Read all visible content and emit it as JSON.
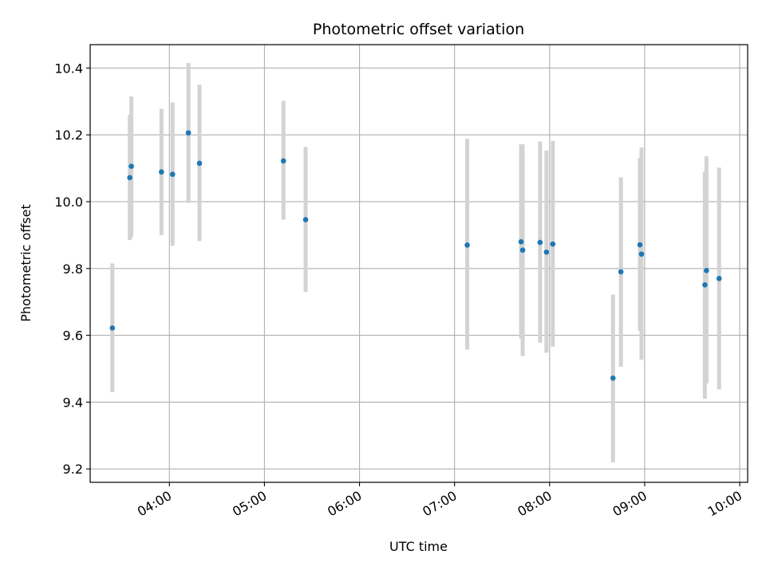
{
  "chart_data": {
    "type": "scatter",
    "title": "Photometric offset variation",
    "xlabel": "UTC time",
    "ylabel": "Photometric offset",
    "grid": true,
    "x_ticks": [
      "04:00",
      "05:00",
      "06:00",
      "07:00",
      "08:00",
      "09:00",
      "10:00"
    ],
    "y_ticks": [
      9.2,
      9.4,
      9.6,
      9.8,
      10.0,
      10.2,
      10.4
    ],
    "xlim": [
      "03:10",
      "10:05"
    ],
    "ylim": [
      9.16,
      10.47
    ],
    "colors": {
      "point": "#1f77b4",
      "errorbar": "#d3d3d3",
      "grid": "#b0b0b0"
    },
    "points": [
      {
        "t": "03:24",
        "y": 9.622,
        "lo": 9.43,
        "hi": 9.815
      },
      {
        "t": "03:35",
        "y": 10.072,
        "lo": 9.885,
        "hi": 10.26
      },
      {
        "t": "03:36",
        "y": 10.106,
        "lo": 9.895,
        "hi": 10.315
      },
      {
        "t": "03:55",
        "y": 10.089,
        "lo": 9.9,
        "hi": 10.278
      },
      {
        "t": "04:02",
        "y": 10.082,
        "lo": 9.868,
        "hi": 10.297
      },
      {
        "t": "04:12",
        "y": 10.206,
        "lo": 9.996,
        "hi": 10.415
      },
      {
        "t": "04:19",
        "y": 10.115,
        "lo": 9.882,
        "hi": 10.35
      },
      {
        "t": "05:12",
        "y": 10.122,
        "lo": 9.946,
        "hi": 10.302
      },
      {
        "t": "05:26",
        "y": 9.946,
        "lo": 9.73,
        "hi": 10.164
      },
      {
        "t": "07:08",
        "y": 9.87,
        "lo": 9.557,
        "hi": 10.188
      },
      {
        "t": "07:42",
        "y": 9.88,
        "lo": 9.59,
        "hi": 10.172
      },
      {
        "t": "07:43",
        "y": 9.855,
        "lo": 9.538,
        "hi": 10.172
      },
      {
        "t": "07:54",
        "y": 9.878,
        "lo": 9.578,
        "hi": 10.18
      },
      {
        "t": "07:58",
        "y": 9.849,
        "lo": 9.548,
        "hi": 10.153
      },
      {
        "t": "08:02",
        "y": 9.873,
        "lo": 9.566,
        "hi": 10.182
      },
      {
        "t": "08:40",
        "y": 9.472,
        "lo": 9.22,
        "hi": 9.722
      },
      {
        "t": "08:45",
        "y": 9.79,
        "lo": 9.506,
        "hi": 10.073
      },
      {
        "t": "08:57",
        "y": 9.871,
        "lo": 9.614,
        "hi": 10.131
      },
      {
        "t": "08:58",
        "y": 9.843,
        "lo": 9.527,
        "hi": 10.162
      },
      {
        "t": "09:38",
        "y": 9.751,
        "lo": 9.41,
        "hi": 10.09
      },
      {
        "t": "09:39",
        "y": 9.794,
        "lo": 9.456,
        "hi": 10.136
      },
      {
        "t": "09:47",
        "y": 9.77,
        "lo": 9.438,
        "hi": 10.102
      }
    ]
  }
}
